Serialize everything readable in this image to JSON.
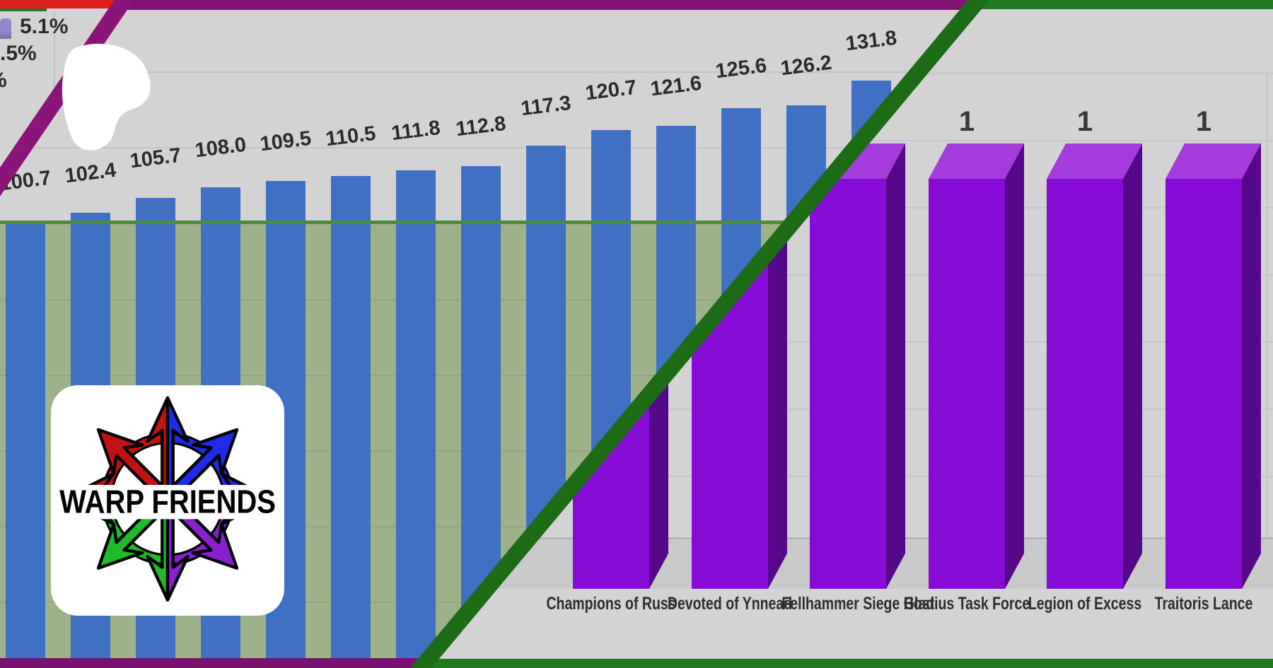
{
  "chart_data": [
    {
      "type": "bar",
      "name": "left-blue-bar-chart",
      "values": [
        100.7,
        102.4,
        105.7,
        108.0,
        109.5,
        110.5,
        111.8,
        112.8,
        117.3,
        120.7,
        121.6,
        125.6,
        126.2,
        131.8
      ],
      "value_labels": [
        "100.7",
        "102.4",
        "105.7",
        "108.0",
        "109.5",
        "110.5",
        "111.8",
        "112.8",
        "117.3",
        "120.7",
        "121.6",
        "125.6",
        "126.2",
        "131.8"
      ],
      "bar_color": "#4070C4",
      "background": "#D3D3D3",
      "highlight_band": {
        "fill": "#9EB28A",
        "top_line": "#4C8C3F"
      },
      "frame_color": "#821274",
      "grid": true
    },
    {
      "type": "bar",
      "name": "right-purple-3d-bar-chart",
      "projection": "3d",
      "categories": [
        "Champions of Russ",
        "Devoted of Ynnead",
        "Fellhammer Siege Host",
        "Gladius Task Force",
        "Legion of Excess",
        "Traitoris Lance"
      ],
      "values": [
        1,
        1,
        1,
        1,
        1,
        1
      ],
      "value_label": "1",
      "bar_colors": {
        "front": "#860BD5",
        "top": "#A43BDC",
        "side": "#55098A"
      },
      "background": "#D3D3D3",
      "frame_color": "#1F7A21",
      "grid": true
    }
  ],
  "pie_fragment": {
    "legend_items": [
      "5.1%",
      ".5%",
      "%"
    ],
    "swatch_color": "#8F85C8",
    "red_bar_color": "#DC1F1A",
    "green_sliver_color": "#306E30"
  },
  "overlay": {
    "blob_color": "#FFFFFF",
    "purple_diagonal_color": "#8A1578",
    "green_diagonal_color": "#1C6B15"
  },
  "logo": {
    "text": "WARP FRIENDS",
    "background": "#FFFFFF",
    "arrow_colors": {
      "red": "#C41111",
      "blue": "#1F2BE8",
      "green": "#1FBB2A",
      "purple": "#8A1FD0"
    }
  }
}
